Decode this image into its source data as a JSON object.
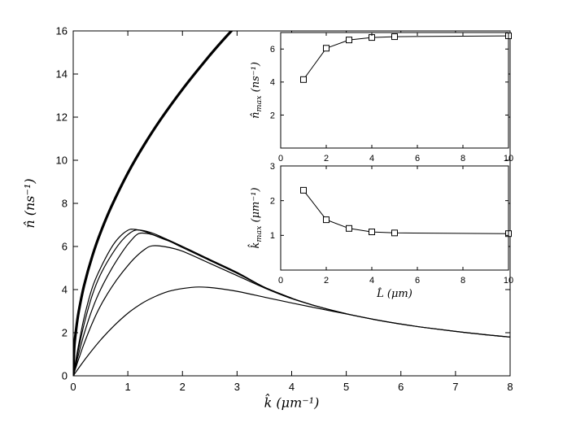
{
  "figure": {
    "bg": "#ffffff",
    "axis_color": "#000000",
    "curve_color": "#000000"
  },
  "chart_data": [
    {
      "id": "main",
      "type": "line",
      "xlabel": {
        "base": "k̂",
        "sub": "",
        "unit": " (μm⁻¹)"
      },
      "ylabel": {
        "base": "n̂",
        "sub": "",
        "unit": " (ns⁻¹)"
      },
      "xlim": [
        0,
        8
      ],
      "ylim": [
        0,
        16
      ],
      "xticks": [
        0,
        1,
        2,
        3,
        4,
        5,
        6,
        7,
        8
      ],
      "yticks": [
        0,
        2,
        4,
        6,
        8,
        10,
        12,
        14,
        16
      ],
      "grid": false,
      "series": [
        {
          "name": "envelope-thick",
          "width": 3.2,
          "smooth": true,
          "points": [
            [
              0,
              0
            ],
            [
              0.02,
              1.33
            ],
            [
              0.05,
              2.1
            ],
            [
              0.1,
              2.97
            ],
            [
              0.2,
              4.2
            ],
            [
              0.35,
              5.56
            ],
            [
              0.5,
              6.65
            ],
            [
              0.7,
              7.86
            ],
            [
              1,
              9.4
            ],
            [
              1.3,
              10.72
            ],
            [
              1.6,
              11.89
            ],
            [
              2,
              13.29
            ],
            [
              2.4,
              14.56
            ],
            [
              2.7,
              15.45
            ],
            [
              3,
              16.28
            ]
          ]
        },
        {
          "name": "L-5",
          "width": 1.2,
          "smooth": true,
          "points": [
            [
              0,
              0
            ],
            [
              0.05,
              0.75
            ],
            [
              0.1,
              1.45
            ],
            [
              0.2,
              2.7
            ],
            [
              0.35,
              4.1
            ],
            [
              0.5,
              5.0
            ],
            [
              0.7,
              5.95
            ],
            [
              0.85,
              6.45
            ],
            [
              1,
              6.75
            ],
            [
              1.1,
              6.8
            ],
            [
              1.3,
              6.7
            ],
            [
              1.6,
              6.4
            ],
            [
              2,
              6.0
            ],
            [
              2.5,
              5.4
            ],
            [
              3,
              4.8
            ],
            [
              3.5,
              4.11
            ],
            [
              4,
              3.6
            ],
            [
              4.5,
              3.2
            ],
            [
              5,
              2.88
            ],
            [
              5.5,
              2.62
            ],
            [
              6,
              2.4
            ],
            [
              6.5,
              2.22
            ],
            [
              7,
              2.06
            ],
            [
              7.5,
              1.92
            ],
            [
              8,
              1.8
            ]
          ]
        },
        {
          "name": "L-4",
          "width": 1.2,
          "smooth": true,
          "points": [
            [
              0,
              0
            ],
            [
              0.05,
              0.65
            ],
            [
              0.1,
              1.27
            ],
            [
              0.2,
              2.4
            ],
            [
              0.35,
              3.75
            ],
            [
              0.5,
              4.7
            ],
            [
              0.7,
              5.6
            ],
            [
              0.9,
              6.3
            ],
            [
              1.1,
              6.72
            ],
            [
              1.25,
              6.75
            ],
            [
              1.45,
              6.62
            ],
            [
              1.7,
              6.35
            ],
            [
              2,
              6.0
            ],
            [
              2.5,
              5.38
            ],
            [
              3,
              4.78
            ],
            [
              3.5,
              4.11
            ],
            [
              4,
              3.6
            ]
          ]
        },
        {
          "name": "L-3",
          "width": 1.2,
          "smooth": true,
          "points": [
            [
              0,
              0
            ],
            [
              0.05,
              0.52
            ],
            [
              0.1,
              1.02
            ],
            [
              0.2,
              1.95
            ],
            [
              0.35,
              3.1
            ],
            [
              0.5,
              4.0
            ],
            [
              0.7,
              4.95
            ],
            [
              0.9,
              5.75
            ],
            [
              1.05,
              6.25
            ],
            [
              1.2,
              6.6
            ],
            [
              1.4,
              6.58
            ],
            [
              1.6,
              6.42
            ],
            [
              1.8,
              6.2
            ],
            [
              2,
              5.95
            ],
            [
              2.5,
              5.35
            ],
            [
              3,
              4.75
            ],
            [
              3.5,
              4.11
            ],
            [
              4,
              3.6
            ]
          ]
        },
        {
          "name": "L-2",
          "width": 1.2,
          "smooth": true,
          "points": [
            [
              0,
              0
            ],
            [
              0.05,
              0.4
            ],
            [
              0.1,
              0.78
            ],
            [
              0.2,
              1.5
            ],
            [
              0.35,
              2.45
            ],
            [
              0.5,
              3.25
            ],
            [
              0.7,
              4.1
            ],
            [
              0.9,
              4.8
            ],
            [
              1.1,
              5.4
            ],
            [
              1.3,
              5.85
            ],
            [
              1.45,
              6.03
            ],
            [
              1.7,
              5.98
            ],
            [
              2,
              5.78
            ],
            [
              2.5,
              5.22
            ],
            [
              3,
              4.65
            ],
            [
              3.5,
              4.08
            ],
            [
              4,
              3.58
            ],
            [
              4.5,
              3.2
            ],
            [
              5,
              2.88
            ]
          ]
        },
        {
          "name": "L-1",
          "width": 1.2,
          "smooth": true,
          "points": [
            [
              0,
              0
            ],
            [
              0.05,
              0.18
            ],
            [
              0.1,
              0.36
            ],
            [
              0.25,
              0.88
            ],
            [
              0.5,
              1.66
            ],
            [
              0.75,
              2.33
            ],
            [
              1,
              2.9
            ],
            [
              1.25,
              3.35
            ],
            [
              1.5,
              3.68
            ],
            [
              1.75,
              3.92
            ],
            [
              2,
              4.05
            ],
            [
              2.3,
              4.12
            ],
            [
              2.6,
              4.07
            ],
            [
              3,
              3.92
            ],
            [
              3.5,
              3.65
            ],
            [
              4,
              3.38
            ],
            [
              4.5,
              3.12
            ],
            [
              5,
              2.87
            ],
            [
              5.5,
              2.62
            ],
            [
              6,
              2.4
            ],
            [
              6.5,
              2.22
            ],
            [
              7,
              2.06
            ],
            [
              7.5,
              1.92
            ],
            [
              8,
              1.8
            ]
          ]
        }
      ]
    },
    {
      "id": "inset-top",
      "type": "line-marker",
      "xlabel": null,
      "ylabel": {
        "base": "n̂",
        "sub": "max",
        "unit": " (ns⁻¹)"
      },
      "xlim": [
        0,
        10
      ],
      "ylim": [
        0,
        7
      ],
      "xticks": [
        0,
        2,
        4,
        6,
        8,
        10
      ],
      "yticks": [
        0,
        2,
        4,
        6
      ],
      "grid": false,
      "series": [
        {
          "name": "n-max-vs-L",
          "width": 1,
          "marker": "square",
          "points": [
            [
              1,
              4.15
            ],
            [
              2,
              6.05
            ],
            [
              3,
              6.55
            ],
            [
              4,
              6.7
            ],
            [
              5,
              6.75
            ],
            [
              10,
              6.8
            ]
          ]
        }
      ]
    },
    {
      "id": "inset-bottom",
      "type": "line-marker",
      "xlabel": {
        "base": "L̂",
        "sub": "",
        "unit": " (μm)"
      },
      "ylabel": {
        "base": "k̂",
        "sub": "max",
        "unit": " (μm⁻¹)"
      },
      "xlim": [
        0,
        10
      ],
      "ylim": [
        0,
        3
      ],
      "xticks": [
        0,
        2,
        4,
        6,
        8,
        10
      ],
      "yticks": [
        0,
        1,
        2,
        3
      ],
      "grid": false,
      "series": [
        {
          "name": "k-max-vs-L",
          "width": 1,
          "marker": "square",
          "points": [
            [
              1,
              2.3
            ],
            [
              2,
              1.45
            ],
            [
              3,
              1.2
            ],
            [
              4,
              1.1
            ],
            [
              5,
              1.07
            ],
            [
              10,
              1.05
            ]
          ]
        }
      ]
    }
  ]
}
